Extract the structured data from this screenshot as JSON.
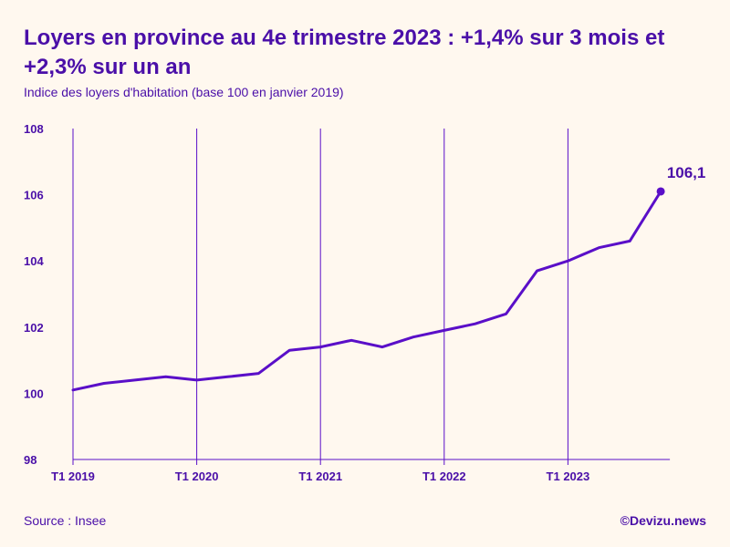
{
  "chart_data": {
    "type": "line",
    "title": "Loyers en province au 4e trimestre 2023 : +1,4% sur 3 mois et +2,3% sur un an",
    "subtitle": "Indice des loyers d'habitation (base 100 en janvier 2019)",
    "xlabel": "",
    "ylabel": "",
    "ylim": [
      98,
      108
    ],
    "yticks": [
      "98",
      "100",
      "102",
      "104",
      "106",
      "108"
    ],
    "xticks": [
      {
        "label": "T1 2019",
        "index": 0
      },
      {
        "label": "T1 2020",
        "index": 4
      },
      {
        "label": "T1 2021",
        "index": 8
      },
      {
        "label": "T1 2022",
        "index": 12
      },
      {
        "label": "T1 2023",
        "index": 16
      }
    ],
    "grid": "vertical",
    "series": [
      {
        "color": "#5a0fc8",
        "x": [
          "T1 2019",
          "T2 2019",
          "T3 2019",
          "T4 2019",
          "T1 2020",
          "T2 2020",
          "T3 2020",
          "T4 2020",
          "T1 2021",
          "T2 2021",
          "T3 2021",
          "T4 2021",
          "T1 2022",
          "T2 2022",
          "T3 2022",
          "T4 2022",
          "T1 2023",
          "T2 2023",
          "T3 2023",
          "T4 2023"
        ],
        "values": [
          100.1,
          100.3,
          100.4,
          100.5,
          100.4,
          100.5,
          100.6,
          101.3,
          101.4,
          101.6,
          101.4,
          101.7,
          101.9,
          102.1,
          102.4,
          103.7,
          104.0,
          104.4,
          104.6,
          106.1
        ]
      }
    ],
    "annotations": [
      {
        "label": "106,1",
        "point_index": 19
      }
    ]
  },
  "footer": {
    "source": "Source : Insee",
    "brand": "©Devizu.news"
  },
  "colors": {
    "accent": "#5a0fc8",
    "text": "#4a0fa8",
    "background": "#fff8ef"
  }
}
